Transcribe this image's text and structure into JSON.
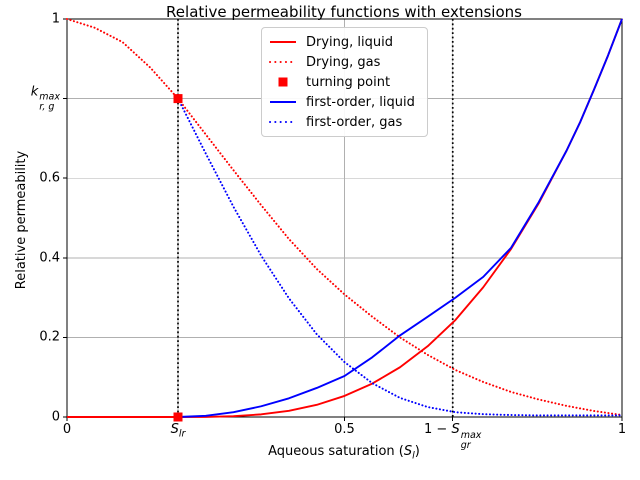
{
  "chart_data": {
    "type": "line",
    "title": "Relative permeability functions with extensions",
    "ylabel": "Relative permeability",
    "xlabel": {
      "pre": "Aqueous saturation (",
      "base": "S",
      "sub": "l",
      "post": ")"
    },
    "xlim": [
      0,
      1
    ],
    "ylim": [
      0,
      1
    ],
    "grid": true,
    "grid_color": "#b0b0b0",
    "axes_color": "#000000",
    "background": "#ffffff",
    "legend_position": "upper center",
    "x_ticks": [
      {
        "value": 0,
        "text": "0"
      },
      {
        "value": 0.2,
        "base": "S",
        "sub": "lr"
      },
      {
        "value": 0.5,
        "text": "0.5"
      },
      {
        "value": 0.695,
        "pre": "1 − ",
        "base": "S",
        "sup": "max",
        "sub": "gr"
      },
      {
        "value": 1,
        "text": "1"
      }
    ],
    "y_ticks": [
      {
        "value": 0,
        "text": "0"
      },
      {
        "value": 0.2,
        "text": "0.2"
      },
      {
        "value": 0.4,
        "text": "0.4"
      },
      {
        "value": 0.6,
        "text": "0.6"
      },
      {
        "value": 0.8,
        "base": "k",
        "sup": "max",
        "sub": "r, g"
      },
      {
        "value": 1,
        "text": "1"
      }
    ],
    "vlines": [
      {
        "x": 0.2,
        "color": "#000000",
        "style": "dotted"
      },
      {
        "x": 0.695,
        "color": "#000000",
        "style": "dotted"
      }
    ],
    "series": [
      {
        "name": "Drying, liquid",
        "color": "#ff0000",
        "style": "solid",
        "x": [
          0,
          0.05,
          0.1,
          0.15,
          0.2,
          0.25,
          0.3,
          0.35,
          0.4,
          0.45,
          0.5,
          0.55,
          0.6,
          0.65,
          0.7,
          0.75,
          0.8,
          0.85,
          0.9,
          0.925,
          0.95,
          0.975,
          1
        ],
        "y": [
          0,
          0,
          0,
          0,
          0,
          0.0002,
          0.002,
          0.0066,
          0.0156,
          0.0305,
          0.053,
          0.084,
          0.125,
          0.178,
          0.244,
          0.326,
          0.422,
          0.537,
          0.669,
          0.742,
          0.824,
          0.909,
          1
        ]
      },
      {
        "name": "Drying, gas",
        "color": "#ff0000",
        "style": "dotted",
        "x": [
          0,
          0.05,
          0.1,
          0.15,
          0.2,
          0.25,
          0.3,
          0.35,
          0.4,
          0.45,
          0.5,
          0.55,
          0.6,
          0.65,
          0.7,
          0.75,
          0.8,
          0.85,
          0.9,
          0.95,
          1
        ],
        "y": [
          1.0,
          0.978,
          0.942,
          0.878,
          0.8,
          0.71,
          0.62,
          0.532,
          0.447,
          0.372,
          0.308,
          0.252,
          0.2,
          0.156,
          0.118,
          0.088,
          0.063,
          0.044,
          0.028,
          0.015,
          0.005
        ]
      },
      {
        "name": "turning point",
        "color": "#ff0000",
        "style": "square-marker",
        "x": [
          0.2,
          0.2
        ],
        "y": [
          0.8,
          0
        ]
      },
      {
        "name": "first-order, liquid",
        "color": "#0000ff",
        "style": "solid",
        "x": [
          0.2,
          0.25,
          0.3,
          0.35,
          0.4,
          0.45,
          0.5,
          0.55,
          0.6,
          0.65,
          0.7,
          0.75,
          0.8,
          0.85,
          0.9,
          0.925,
          0.95,
          0.975,
          1
        ],
        "y": [
          0,
          0.003,
          0.012,
          0.027,
          0.047,
          0.073,
          0.103,
          0.15,
          0.205,
          0.252,
          0.3,
          0.352,
          0.425,
          0.54,
          0.669,
          0.742,
          0.824,
          0.909,
          1
        ]
      },
      {
        "name": "first-order, gas",
        "color": "#0000ff",
        "style": "dotted",
        "x": [
          0.2,
          0.25,
          0.3,
          0.35,
          0.4,
          0.45,
          0.5,
          0.55,
          0.6,
          0.65,
          0.7,
          0.75,
          0.8,
          0.85,
          0.9,
          0.95,
          1
        ],
        "y": [
          0.8,
          0.662,
          0.528,
          0.405,
          0.298,
          0.208,
          0.138,
          0.085,
          0.048,
          0.025,
          0.012,
          0.007,
          0.005,
          0.004,
          0.004,
          0.004,
          0.004
        ]
      }
    ]
  }
}
